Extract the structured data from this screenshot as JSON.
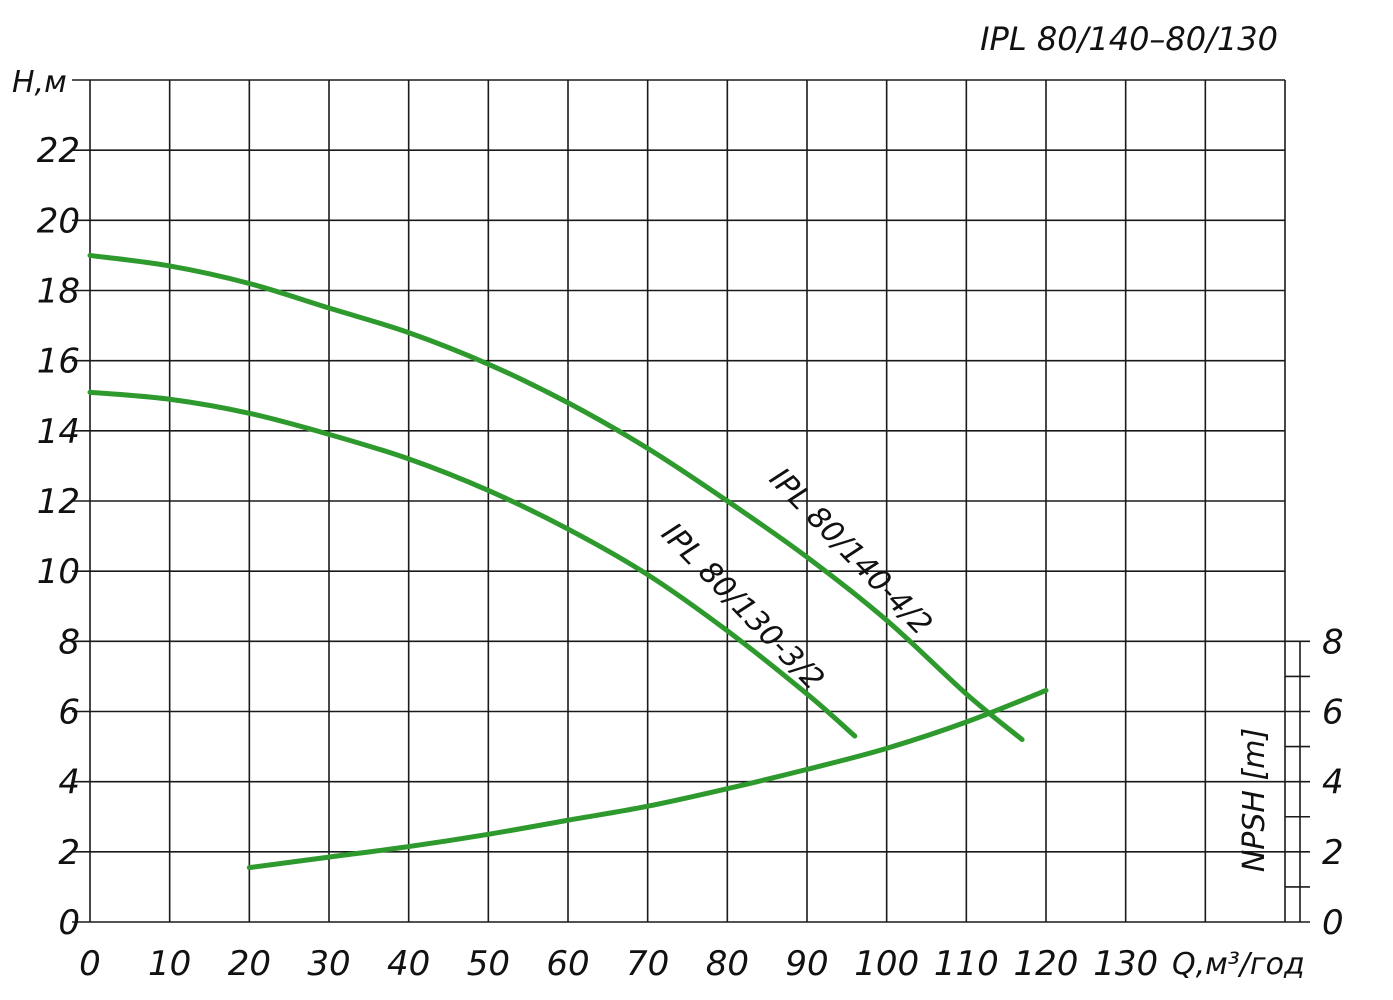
{
  "chart_data": {
    "type": "line",
    "title": "IPL 80/140–80/130",
    "xlabel": "Q,м³/год",
    "ylabel": "H,м",
    "y2label": "NPSH [m]",
    "xlim": [
      0,
      150
    ],
    "ylim": [
      0,
      24
    ],
    "y2lim": [
      0,
      8
    ],
    "x_ticks": [
      "0",
      "10",
      "20",
      "30",
      "40",
      "50",
      "60",
      "70",
      "80",
      "90",
      "100",
      "110",
      "120",
      "130"
    ],
    "y_ticks": [
      "0",
      "2",
      "4",
      "6",
      "8",
      "10",
      "12",
      "14",
      "16",
      "18",
      "20",
      "22"
    ],
    "y2_ticks": [
      "0",
      "2",
      "4",
      "6",
      "8"
    ],
    "grid": true,
    "curve_color": "#2e9a2e",
    "series": [
      {
        "name": "IPL 80/140-4/2",
        "axis": "H",
        "x": [
          0,
          10,
          20,
          30,
          40,
          50,
          60,
          70,
          80,
          90,
          100,
          110,
          117
        ],
        "y": [
          19.0,
          18.7,
          18.2,
          17.5,
          16.8,
          15.9,
          14.8,
          13.5,
          12.0,
          10.4,
          8.6,
          6.5,
          5.2
        ]
      },
      {
        "name": "IPL 80/130-3/2",
        "axis": "H",
        "x": [
          0,
          10,
          20,
          30,
          40,
          50,
          60,
          70,
          80,
          90,
          96
        ],
        "y": [
          15.1,
          14.9,
          14.5,
          13.9,
          13.2,
          12.3,
          11.2,
          9.9,
          8.3,
          6.5,
          5.3
        ]
      },
      {
        "name": "",
        "axis": "NPSH",
        "x": [
          20,
          30,
          40,
          50,
          60,
          70,
          80,
          90,
          100,
          110,
          120
        ],
        "y": [
          1.55,
          1.85,
          2.15,
          2.5,
          2.9,
          3.3,
          3.8,
          4.35,
          4.95,
          5.7,
          6.6
        ]
      }
    ]
  }
}
